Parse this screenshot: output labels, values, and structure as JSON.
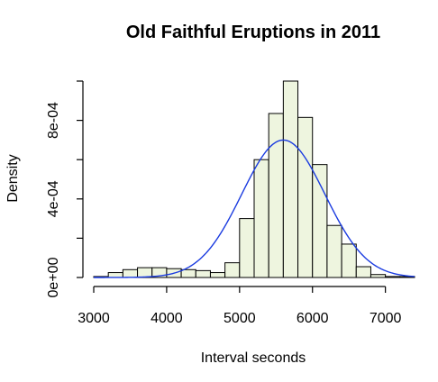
{
  "chart_data": {
    "type": "bar",
    "title": "Old Faithful Eruptions in 2011",
    "xlabel": "Interval seconds",
    "ylabel": "Density",
    "xlim": [
      3000,
      7400
    ],
    "ylim": [
      0,
      0.001
    ],
    "x_ticks": [
      {
        "value": 3000,
        "label": "3000"
      },
      {
        "value": 4000,
        "label": "4000"
      },
      {
        "value": 5000,
        "label": "5000"
      },
      {
        "value": 6000,
        "label": "6000"
      },
      {
        "value": 7000,
        "label": "7000"
      }
    ],
    "y_ticks": [
      {
        "value": 0,
        "label": "0e+00"
      },
      {
        "value": 0.0002,
        "label": ""
      },
      {
        "value": 0.0004,
        "label": "4e-04"
      },
      {
        "value": 0.0006,
        "label": ""
      },
      {
        "value": 0.0008,
        "label": "8e-04"
      },
      {
        "value": 0.001,
        "label": ""
      }
    ],
    "bin_width": 200,
    "bins": [
      {
        "start": 3000,
        "density": 5e-06
      },
      {
        "start": 3200,
        "density": 2.5e-05
      },
      {
        "start": 3400,
        "density": 4e-05
      },
      {
        "start": 3600,
        "density": 5e-05
      },
      {
        "start": 3800,
        "density": 5e-05
      },
      {
        "start": 4000,
        "density": 4.5e-05
      },
      {
        "start": 4200,
        "density": 4e-05
      },
      {
        "start": 4400,
        "density": 3.5e-05
      },
      {
        "start": 4600,
        "density": 2.5e-05
      },
      {
        "start": 4800,
        "density": 7.5e-05
      },
      {
        "start": 5000,
        "density": 0.0003
      },
      {
        "start": 5200,
        "density": 0.0006
      },
      {
        "start": 5400,
        "density": 0.000835
      },
      {
        "start": 5600,
        "density": 0.001
      },
      {
        "start": 5800,
        "density": 0.000815
      },
      {
        "start": 6000,
        "density": 0.000575
      },
      {
        "start": 6200,
        "density": 0.000265
      },
      {
        "start": 6400,
        "density": 0.00017
      },
      {
        "start": 6600,
        "density": 5.5e-05
      },
      {
        "start": 6800,
        "density": 1.5e-05
      },
      {
        "start": 7000,
        "density": 5e-06
      },
      {
        "start": 7200,
        "density": 5e-06
      }
    ],
    "normal_curve": {
      "mean": 5600,
      "sd": 570
    },
    "colors": {
      "bar_fill": "#eef5df",
      "bar_stroke": "#000000",
      "curve": "#1a3be0"
    },
    "grid": false,
    "legend": "none"
  }
}
